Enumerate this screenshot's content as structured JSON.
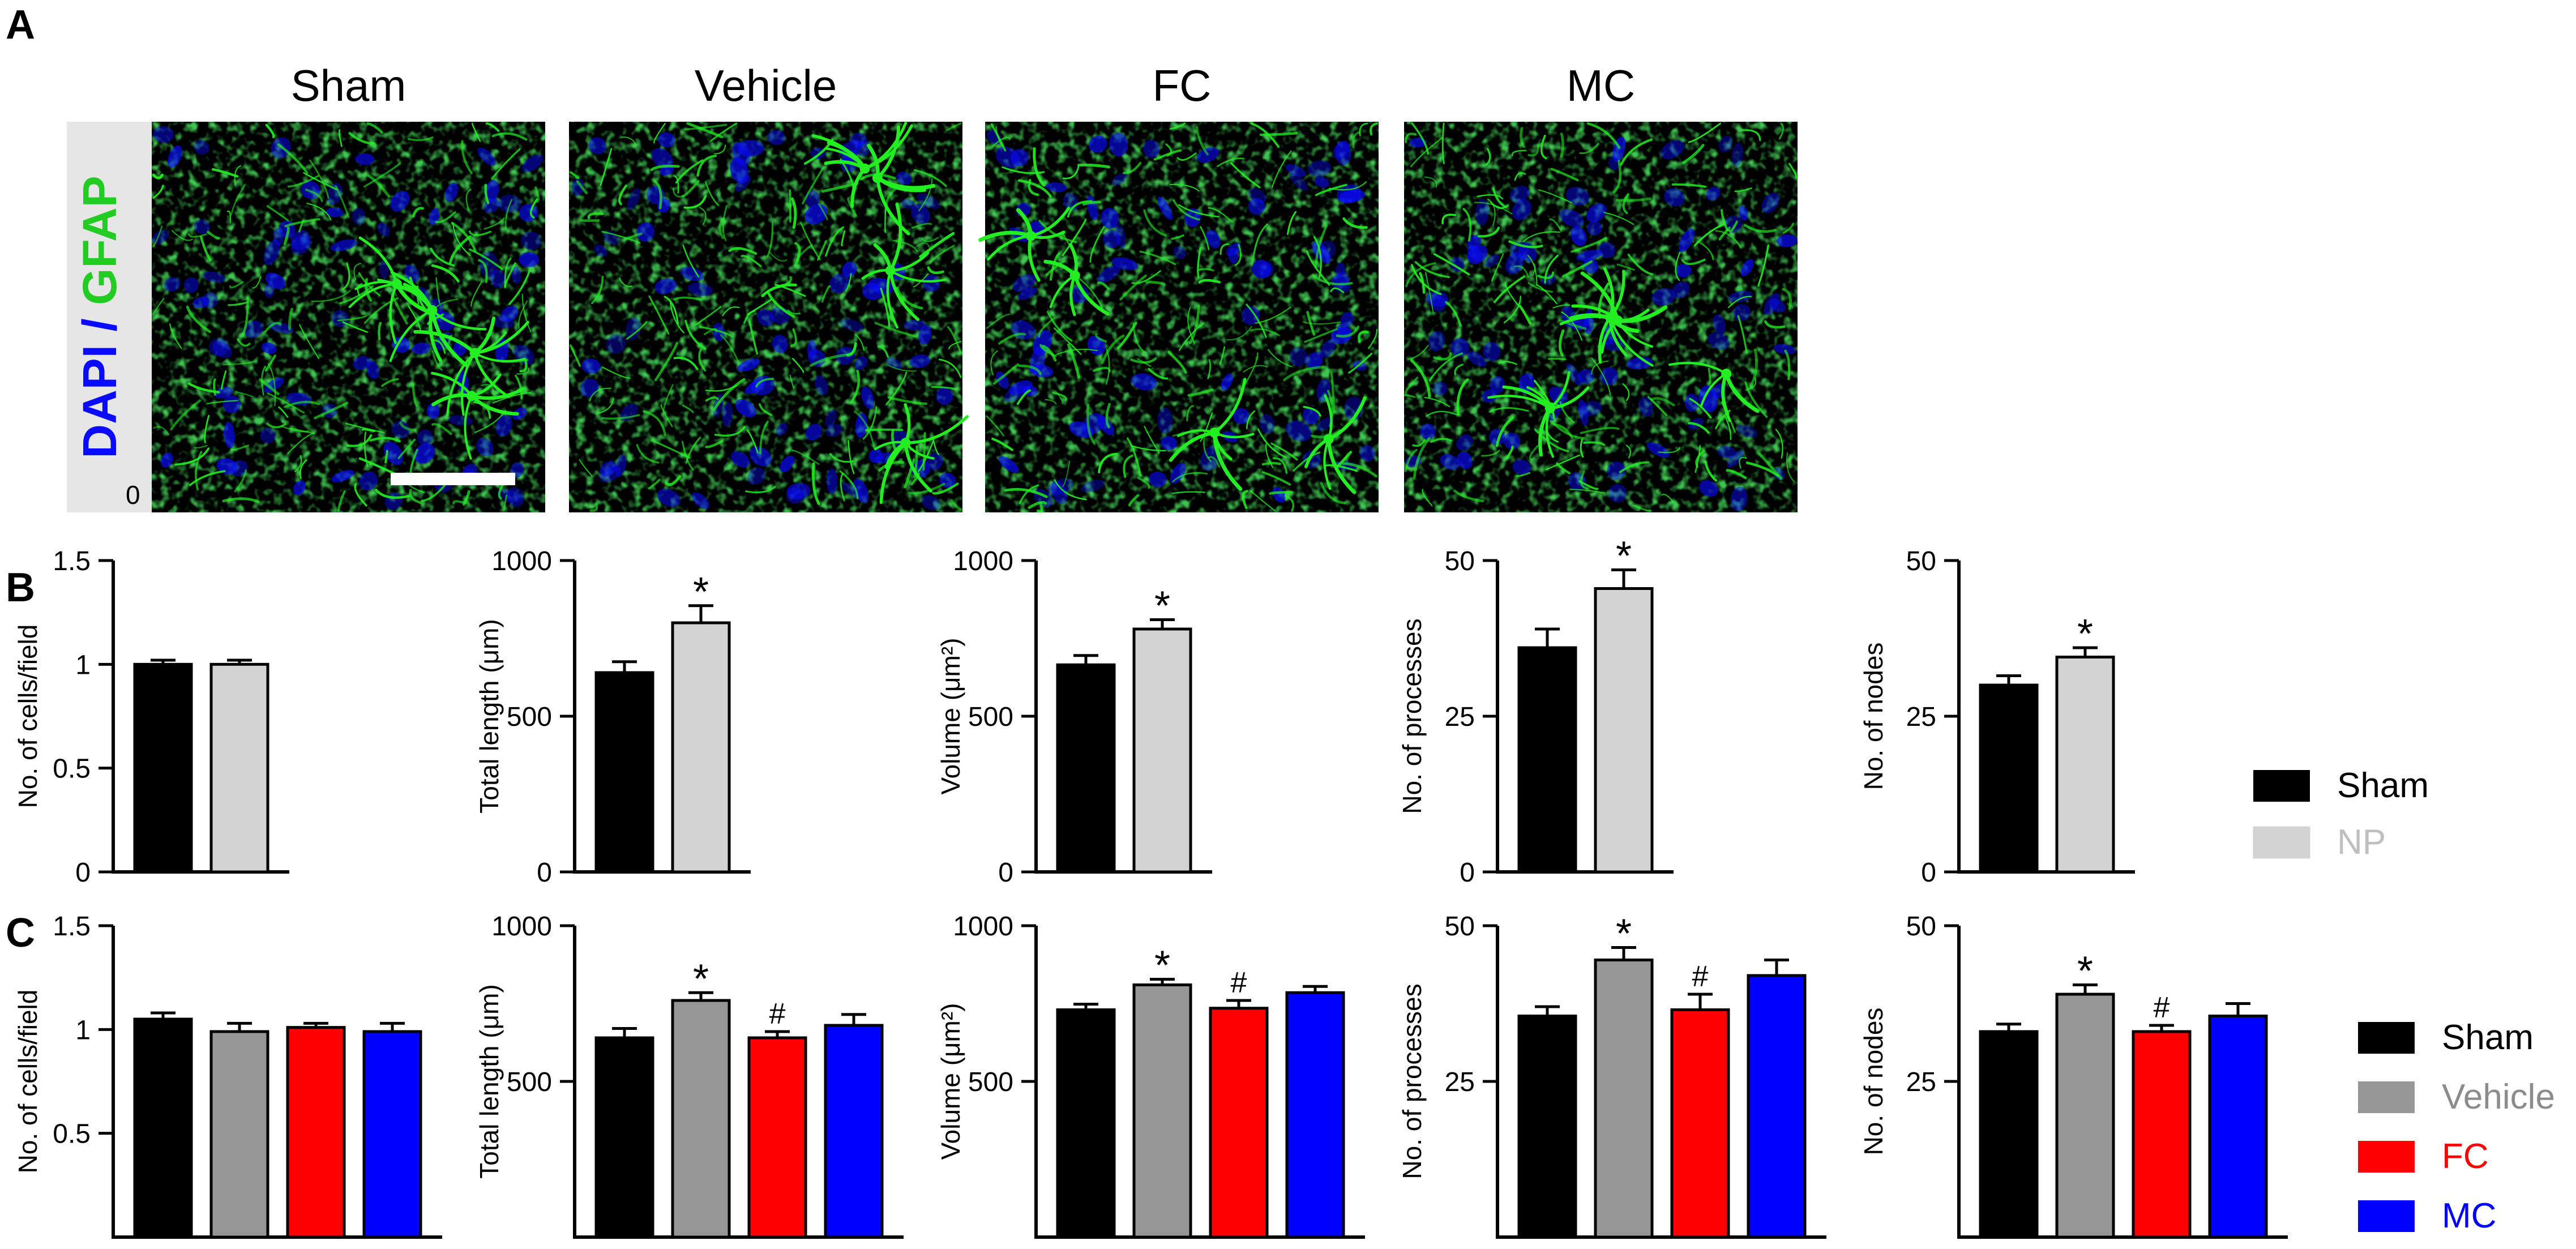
{
  "panel_labels": {
    "a": "A",
    "b": "B",
    "c": "C"
  },
  "panel_a": {
    "conditions": [
      "Sham",
      "Vehicle",
      "FC",
      "MC"
    ],
    "stain_label": {
      "dapi": "DAPI",
      "separator": " / ",
      "gfap": "GFAP"
    },
    "corner_label": "0",
    "colors": {
      "dapi": "#0a0aff",
      "gfap": "#22ee22",
      "background": "#000000"
    }
  },
  "legend_b": {
    "items": [
      {
        "label": "Sham",
        "color": "#000000",
        "text_color": "#000000"
      },
      {
        "label": "NP",
        "color": "#d3d3d3",
        "text_color": "#bfbfbf"
      }
    ]
  },
  "legend_c": {
    "items": [
      {
        "label": "Sham",
        "color": "#000000",
        "text_color": "#000000"
      },
      {
        "label": "Vehicle",
        "color": "#969696",
        "text_color": "#8c8c8c"
      },
      {
        "label": "FC",
        "color": "#ff0000",
        "text_color": "#ff0000"
      },
      {
        "label": "MC",
        "color": "#0000ff",
        "text_color": "#0000ff"
      }
    ]
  },
  "chart_data": [
    {
      "id": "B1",
      "type": "bar",
      "row": "B",
      "ylabel": "No. of cells/field",
      "ylim": [
        0,
        1.5
      ],
      "yticks": [
        0,
        0.5,
        1,
        1.5
      ],
      "ytick_labels": [
        "0",
        "0.5",
        "1",
        "1.5"
      ],
      "categories": [
        "Sham",
        "NP"
      ],
      "colors": [
        "#000000",
        "#d3d3d3"
      ],
      "values": [
        1.0,
        1.0
      ],
      "errors": [
        0.02,
        0.02
      ],
      "annotations": [
        "",
        ""
      ]
    },
    {
      "id": "B2",
      "type": "bar",
      "row": "B",
      "ylabel": "Total length (μm)",
      "ylim": [
        0,
        1000
      ],
      "yticks": [
        0,
        500,
        1000
      ],
      "ytick_labels": [
        "0",
        "500",
        "1000"
      ],
      "categories": [
        "Sham",
        "NP"
      ],
      "colors": [
        "#000000",
        "#d3d3d3"
      ],
      "values": [
        640,
        800
      ],
      "errors": [
        35,
        55
      ],
      "annotations": [
        "",
        "*"
      ]
    },
    {
      "id": "B3",
      "type": "bar",
      "row": "B",
      "ylabel": "Volume (μm²)",
      "ylim": [
        0,
        1000
      ],
      "yticks": [
        0,
        500,
        1000
      ],
      "ytick_labels": [
        "0",
        "500",
        "1000"
      ],
      "categories": [
        "Sham",
        "NP"
      ],
      "colors": [
        "#000000",
        "#d3d3d3"
      ],
      "values": [
        665,
        780
      ],
      "errors": [
        30,
        30
      ],
      "annotations": [
        "",
        "*"
      ]
    },
    {
      "id": "B4",
      "type": "bar",
      "row": "B",
      "ylabel": "No. of processes",
      "ylim": [
        0,
        50
      ],
      "yticks": [
        0,
        25,
        50
      ],
      "ytick_labels": [
        "0",
        "25",
        "50"
      ],
      "categories": [
        "Sham",
        "NP"
      ],
      "colors": [
        "#000000",
        "#d3d3d3"
      ],
      "values": [
        36,
        45.5
      ],
      "errors": [
        3,
        3
      ],
      "annotations": [
        "",
        "*"
      ]
    },
    {
      "id": "B5",
      "type": "bar",
      "row": "B",
      "ylabel": "No. of nodes",
      "ylim": [
        0,
        50
      ],
      "yticks": [
        0,
        25,
        50
      ],
      "ytick_labels": [
        "0",
        "25",
        "50"
      ],
      "categories": [
        "Sham",
        "NP"
      ],
      "colors": [
        "#000000",
        "#d3d3d3"
      ],
      "values": [
        30,
        34.5
      ],
      "errors": [
        1.5,
        1.5
      ],
      "annotations": [
        "",
        "*"
      ]
    },
    {
      "id": "C1",
      "type": "bar",
      "row": "C",
      "ylabel": "No. of cells/field",
      "ylim": [
        0,
        1.5
      ],
      "yticks": [
        0.5,
        1,
        1.5
      ],
      "ytick_labels": [
        "0.5",
        "1",
        "1.5"
      ],
      "categories": [
        "Sham",
        "Vehicle",
        "FC",
        "MC"
      ],
      "colors": [
        "#000000",
        "#969696",
        "#ff0000",
        "#0000ff"
      ],
      "values": [
        1.05,
        0.99,
        1.01,
        0.99
      ],
      "errors": [
        0.03,
        0.04,
        0.02,
        0.04
      ],
      "annotations": [
        "",
        "",
        "",
        ""
      ]
    },
    {
      "id": "C2",
      "type": "bar",
      "row": "C",
      "ylabel": "Total length (μm)",
      "ylim": [
        0,
        1000
      ],
      "yticks": [
        500,
        1000
      ],
      "ytick_labels": [
        "500",
        "1000"
      ],
      "categories": [
        "Sham",
        "Vehicle",
        "FC",
        "MC"
      ],
      "colors": [
        "#000000",
        "#969696",
        "#ff0000",
        "#0000ff"
      ],
      "values": [
        640,
        760,
        640,
        680
      ],
      "errors": [
        30,
        25,
        20,
        35
      ],
      "annotations": [
        "",
        "*",
        "#",
        ""
      ]
    },
    {
      "id": "C3",
      "type": "bar",
      "row": "C",
      "ylabel": "Volume (μm²)",
      "ylim": [
        0,
        1000
      ],
      "yticks": [
        500,
        1000
      ],
      "ytick_labels": [
        "500",
        "1000"
      ],
      "categories": [
        "Sham",
        "Vehicle",
        "FC",
        "MC"
      ],
      "colors": [
        "#000000",
        "#969696",
        "#ff0000",
        "#0000ff"
      ],
      "values": [
        730,
        810,
        735,
        785
      ],
      "errors": [
        18,
        18,
        25,
        20
      ],
      "annotations": [
        "",
        "*",
        "#",
        ""
      ]
    },
    {
      "id": "C4",
      "type": "bar",
      "row": "C",
      "ylabel": "No. of processes",
      "ylim": [
        0,
        50
      ],
      "yticks": [
        25,
        50
      ],
      "ytick_labels": [
        "25",
        "50"
      ],
      "categories": [
        "Sham",
        "Vehicle",
        "FC",
        "MC"
      ],
      "colors": [
        "#000000",
        "#969696",
        "#ff0000",
        "#0000ff"
      ],
      "values": [
        35.5,
        44.5,
        36.5,
        42
      ],
      "errors": [
        1.5,
        2,
        2.5,
        2.5
      ],
      "annotations": [
        "",
        "*",
        "#",
        ""
      ]
    },
    {
      "id": "C5",
      "type": "bar",
      "row": "C",
      "ylabel": "No. of nodes",
      "ylim": [
        0,
        50
      ],
      "yticks": [
        25,
        50
      ],
      "ytick_labels": [
        "25",
        "50"
      ],
      "categories": [
        "Sham",
        "Vehicle",
        "FC",
        "MC"
      ],
      "colors": [
        "#000000",
        "#969696",
        "#ff0000",
        "#0000ff"
      ],
      "values": [
        33,
        39,
        33,
        35.5
      ],
      "errors": [
        1.2,
        1.5,
        1,
        2
      ],
      "annotations": [
        "",
        "*",
        "#",
        ""
      ]
    }
  ]
}
